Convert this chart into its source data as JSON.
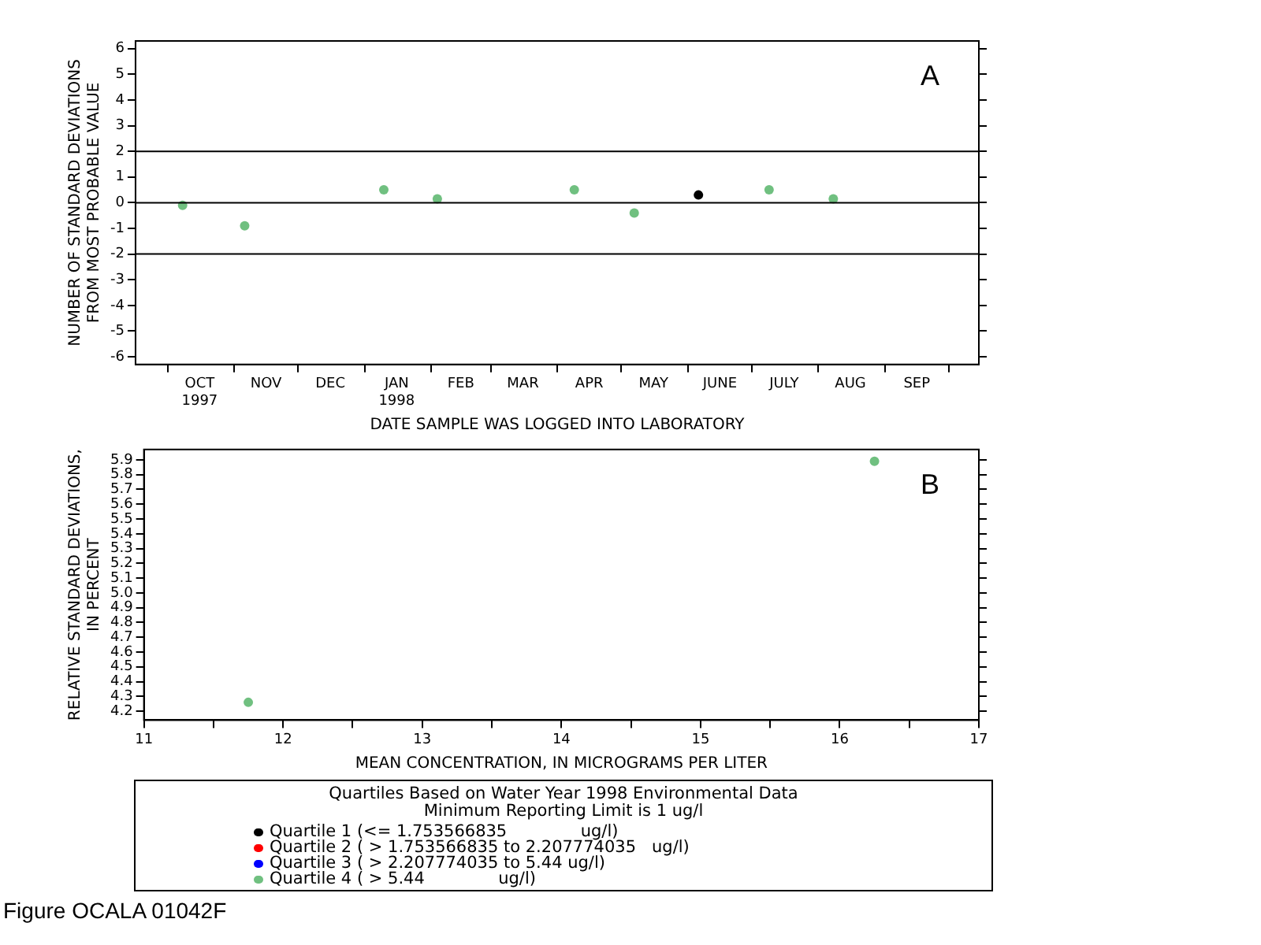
{
  "chart_data": [
    {
      "type": "scatter",
      "xlabel": "DATE SAMPLE WAS LOGGED INTO LABORATORY",
      "ylabel": "NUMBER OF STANDARD DEVIATIONS\nFROM MOST PROBABLE VALUE",
      "legend_title": "Quartiles Based on Water Year 1998 Environmental Data\nMinimum Reporting Limit is 1 ug/l",
      "legend": "bottom",
      "marker": "circle",
      "grid": false,
      "xlim": [
        "1997-09-16",
        "1998-10-15"
      ],
      "xticks": [
        {
          "value": "1997-10-01",
          "label": null
        },
        {
          "value": "1997-10-16",
          "label": "OCT\n1997"
        },
        {
          "value": "1997-11-01",
          "label": null
        },
        {
          "value": "1997-11-16",
          "label": "NOV"
        },
        {
          "value": "1997-12-01",
          "label": null
        },
        {
          "value": "1997-12-16",
          "label": "DEC"
        },
        {
          "value": "1998-01-01",
          "label": null
        },
        {
          "value": "1998-01-16",
          "label": "JAN\n1998"
        },
        {
          "value": "1998-02-01",
          "label": null
        },
        {
          "value": "1998-02-15",
          "label": "FEB"
        },
        {
          "value": "1998-03-01",
          "label": null
        },
        {
          "value": "1998-03-16",
          "label": "MAR"
        },
        {
          "value": "1998-04-01",
          "label": null
        },
        {
          "value": "1998-04-16",
          "label": "APR"
        },
        {
          "value": "1998-05-01",
          "label": null
        },
        {
          "value": "1998-05-16",
          "label": "MAY"
        },
        {
          "value": "1998-06-01",
          "label": null
        },
        {
          "value": "1998-06-16",
          "label": "JUNE"
        },
        {
          "value": "1998-07-01",
          "label": null
        },
        {
          "value": "1998-07-16",
          "label": "JULY"
        },
        {
          "value": "1998-08-01",
          "label": null
        },
        {
          "value": "1998-08-16",
          "label": "AUG"
        },
        {
          "value": "1998-09-01",
          "label": null
        },
        {
          "value": "1998-09-16",
          "label": "SEP"
        },
        {
          "value": "1998-10-01",
          "label": null
        }
      ],
      "ylim": [
        -6.3,
        6.3
      ],
      "yticks": [
        -6,
        -5,
        -4,
        -3,
        -2,
        -1,
        0,
        1,
        2,
        3,
        4,
        5,
        6
      ],
      "ref_lines": [
        {
          "axis": "y",
          "value": 2,
          "label": null
        },
        {
          "axis": "y",
          "value": 0,
          "label": null
        },
        {
          "axis": "y",
          "value": -2,
          "label": null
        }
      ],
      "annotations": [
        "A"
      ],
      "series": [
        {
          "name": "Quartile 1 (<= 1.753566835              ug/l)",
          "color": "#000000",
          "x": [
            "1998-06-06"
          ],
          "values": [
            0.3
          ]
        },
        {
          "name": "Quartile 2 ( > 1.753566835 to 2.207774035   ug/l)",
          "color": "#ff0000"
        },
        {
          "name": "Quartile 3 ( > 2.207774035 to 5.44 ug/l)",
          "color": "#0000ff"
        },
        {
          "name": "Quartile 4 ( > 5.44              ug/l)",
          "color": "#70c080",
          "x": [
            "1997-10-08",
            "1997-11-06",
            "1998-01-10",
            "1998-02-04",
            "1998-04-09",
            "1998-05-07",
            "1998-07-09",
            "1998-08-08"
          ],
          "values": [
            -0.1,
            -0.9,
            0.5,
            0.15,
            0.5,
            -0.4,
            0.5,
            0.15
          ]
        }
      ]
    },
    {
      "type": "scatter",
      "xlabel": "MEAN CONCENTRATION, IN MICROGRAMS PER LITER",
      "ylabel": "RELATIVE STANDARD DEVIATIONS,\nIN PERCENT",
      "marker": "circle",
      "grid": false,
      "xlim": [
        11,
        17
      ],
      "xticks": [
        11,
        {
          "value": 11.5,
          "label": null
        },
        12,
        {
          "value": 12.5,
          "label": null
        },
        13,
        {
          "value": 13.5,
          "label": null
        },
        14,
        {
          "value": 14.5,
          "label": null
        },
        15,
        {
          "value": 15.5,
          "label": null
        },
        16,
        {
          "value": 16.5,
          "label": null
        },
        17
      ],
      "ylim": [
        4.14,
        5.97
      ],
      "yticks": [
        4.2,
        4.3,
        4.4,
        4.5,
        4.6,
        4.7,
        4.8,
        4.9,
        {
          "value": 5,
          "label": "5.0"
        },
        5.1,
        5.2,
        5.3,
        5.4,
        5.5,
        5.6,
        5.7,
        5.8,
        5.9
      ],
      "annotations": [
        "B",
        "Figure OCALA 01042F"
      ],
      "series": [
        {
          "color": "#70c080",
          "x": [
            11.75,
            16.25
          ],
          "values": [
            4.26,
            5.89
          ]
        }
      ]
    }
  ]
}
